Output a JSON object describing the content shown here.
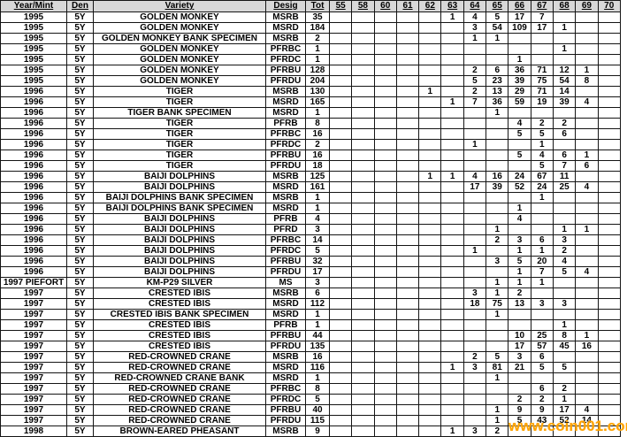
{
  "table": {
    "columns": [
      "Year/Mint",
      "Den",
      "Variety",
      "Desig",
      "Tot",
      "55",
      "58",
      "60",
      "61",
      "62",
      "63",
      "64",
      "65",
      "66",
      "67",
      "68",
      "69",
      "70"
    ],
    "rows": [
      [
        "1995",
        "5Y",
        "GOLDEN MONKEY",
        "MSRB",
        "35",
        "",
        "",
        "",
        "",
        "",
        "1",
        "4",
        "5",
        "17",
        "7",
        "",
        "",
        ""
      ],
      [
        "1995",
        "5Y",
        "GOLDEN MONKEY",
        "MSRD",
        "184",
        "",
        "",
        "",
        "",
        "",
        "",
        "3",
        "54",
        "109",
        "17",
        "1",
        "",
        ""
      ],
      [
        "1995",
        "5Y",
        "GOLDEN MONKEY BANK SPECIMEN",
        "MSRB",
        "2",
        "",
        "",
        "",
        "",
        "",
        "",
        "1",
        "1",
        "",
        "",
        "",
        "",
        ""
      ],
      [
        "1995",
        "5Y",
        "GOLDEN MONKEY",
        "PFRBC",
        "1",
        "",
        "",
        "",
        "",
        "",
        "",
        "",
        "",
        "",
        "",
        "1",
        "",
        ""
      ],
      [
        "1995",
        "5Y",
        "GOLDEN MONKEY",
        "PFRDC",
        "1",
        "",
        "",
        "",
        "",
        "",
        "",
        "",
        "",
        "1",
        "",
        "",
        "",
        ""
      ],
      [
        "1995",
        "5Y",
        "GOLDEN MONKEY",
        "PFRBU",
        "128",
        "",
        "",
        "",
        "",
        "",
        "",
        "2",
        "6",
        "36",
        "71",
        "12",
        "1",
        ""
      ],
      [
        "1995",
        "5Y",
        "GOLDEN MONKEY",
        "PFRDU",
        "204",
        "",
        "",
        "",
        "",
        "",
        "",
        "5",
        "23",
        "39",
        "75",
        "54",
        "8",
        ""
      ],
      [
        "1996",
        "5Y",
        "TIGER",
        "MSRB",
        "130",
        "",
        "",
        "",
        "",
        "1",
        "",
        "2",
        "13",
        "29",
        "71",
        "14",
        "",
        ""
      ],
      [
        "1996",
        "5Y",
        "TIGER",
        "MSRD",
        "165",
        "",
        "",
        "",
        "",
        "",
        "1",
        "7",
        "36",
        "59",
        "19",
        "39",
        "4",
        ""
      ],
      [
        "1996",
        "5Y",
        "TIGER BANK SPECIMEN",
        "MSRD",
        "1",
        "",
        "",
        "",
        "",
        "",
        "",
        "",
        "1",
        "",
        "",
        "",
        "",
        ""
      ],
      [
        "1996",
        "5Y",
        "TIGER",
        "PFRB",
        "8",
        "",
        "",
        "",
        "",
        "",
        "",
        "",
        "",
        "4",
        "2",
        "2",
        "",
        ""
      ],
      [
        "1996",
        "5Y",
        "TIGER",
        "PFRBC",
        "16",
        "",
        "",
        "",
        "",
        "",
        "",
        "",
        "",
        "5",
        "5",
        "6",
        "",
        ""
      ],
      [
        "1996",
        "5Y",
        "TIGER",
        "PFRDC",
        "2",
        "",
        "",
        "",
        "",
        "",
        "",
        "1",
        "",
        "",
        "1",
        "",
        "",
        ""
      ],
      [
        "1996",
        "5Y",
        "TIGER",
        "PFRBU",
        "16",
        "",
        "",
        "",
        "",
        "",
        "",
        "",
        "",
        "5",
        "4",
        "6",
        "1",
        ""
      ],
      [
        "1996",
        "5Y",
        "TIGER",
        "PFRDU",
        "18",
        "",
        "",
        "",
        "",
        "",
        "",
        "",
        "",
        "",
        "5",
        "7",
        "6",
        ""
      ],
      [
        "1996",
        "5Y",
        "BAIJI DOLPHINS",
        "MSRB",
        "125",
        "",
        "",
        "",
        "",
        "1",
        "1",
        "4",
        "16",
        "24",
        "67",
        "11",
        "",
        ""
      ],
      [
        "1996",
        "5Y",
        "BAIJI DOLPHINS",
        "MSRD",
        "161",
        "",
        "",
        "",
        "",
        "",
        "",
        "17",
        "39",
        "52",
        "24",
        "25",
        "4",
        ""
      ],
      [
        "1996",
        "5Y",
        "BAIJI DOLPHINS BANK SPECIMEN",
        "MSRB",
        "1",
        "",
        "",
        "",
        "",
        "",
        "",
        "",
        "",
        "",
        "1",
        "",
        "",
        ""
      ],
      [
        "1996",
        "5Y",
        "BAIJI DOLPHINS BANK SPECIMEN",
        "MSRD",
        "1",
        "",
        "",
        "",
        "",
        "",
        "",
        "",
        "",
        "1",
        "",
        "",
        "",
        ""
      ],
      [
        "1996",
        "5Y",
        "BAIJI DOLPHINS",
        "PFRB",
        "4",
        "",
        "",
        "",
        "",
        "",
        "",
        "",
        "",
        "4",
        "",
        "",
        "",
        ""
      ],
      [
        "1996",
        "5Y",
        "BAIJI DOLPHINS",
        "PFRD",
        "3",
        "",
        "",
        "",
        "",
        "",
        "",
        "",
        "1",
        "",
        "",
        "1",
        "1",
        ""
      ],
      [
        "1996",
        "5Y",
        "BAIJI DOLPHINS",
        "PFRBC",
        "14",
        "",
        "",
        "",
        "",
        "",
        "",
        "",
        "2",
        "3",
        "6",
        "3",
        "",
        ""
      ],
      [
        "1996",
        "5Y",
        "BAIJI DOLPHINS",
        "PFRDC",
        "5",
        "",
        "",
        "",
        "",
        "",
        "",
        "1",
        "",
        "1",
        "1",
        "2",
        "",
        ""
      ],
      [
        "1996",
        "5Y",
        "BAIJI DOLPHINS",
        "PFRBU",
        "32",
        "",
        "",
        "",
        "",
        "",
        "",
        "",
        "3",
        "5",
        "20",
        "4",
        "",
        ""
      ],
      [
        "1996",
        "5Y",
        "BAIJI DOLPHINS",
        "PFRDU",
        "17",
        "",
        "",
        "",
        "",
        "",
        "",
        "",
        "",
        "1",
        "7",
        "5",
        "4",
        ""
      ],
      [
        "1997 PIEFORT",
        "5Y",
        "KM-P29 SILVER",
        "MS",
        "3",
        "",
        "",
        "",
        "",
        "",
        "",
        "",
        "1",
        "1",
        "1",
        "",
        "",
        ""
      ],
      [
        "1997",
        "5Y",
        "CRESTED IBIS",
        "MSRB",
        "6",
        "",
        "",
        "",
        "",
        "",
        "",
        "3",
        "1",
        "2",
        "",
        "",
        "",
        ""
      ],
      [
        "1997",
        "5Y",
        "CRESTED IBIS",
        "MSRD",
        "112",
        "",
        "",
        "",
        "",
        "",
        "",
        "18",
        "75",
        "13",
        "3",
        "3",
        "",
        ""
      ],
      [
        "1997",
        "5Y",
        "CRESTED IBIS BANK SPECIMEN",
        "MSRD",
        "1",
        "",
        "",
        "",
        "",
        "",
        "",
        "",
        "1",
        "",
        "",
        "",
        "",
        ""
      ],
      [
        "1997",
        "5Y",
        "CRESTED IBIS",
        "PFRB",
        "1",
        "",
        "",
        "",
        "",
        "",
        "",
        "",
        "",
        "",
        "",
        "1",
        "",
        ""
      ],
      [
        "1997",
        "5Y",
        "CRESTED IBIS",
        "PFRBU",
        "44",
        "",
        "",
        "",
        "",
        "",
        "",
        "",
        "",
        "10",
        "25",
        "8",
        "1",
        ""
      ],
      [
        "1997",
        "5Y",
        "CRESTED IBIS",
        "PFRDU",
        "135",
        "",
        "",
        "",
        "",
        "",
        "",
        "",
        "",
        "17",
        "57",
        "45",
        "16",
        ""
      ],
      [
        "1997",
        "5Y",
        "RED-CROWNED CRANE",
        "MSRB",
        "16",
        "",
        "",
        "",
        "",
        "",
        "",
        "2",
        "5",
        "3",
        "6",
        "",
        "",
        ""
      ],
      [
        "1997",
        "5Y",
        "RED-CROWNED CRANE",
        "MSRD",
        "116",
        "",
        "",
        "",
        "",
        "",
        "1",
        "3",
        "81",
        "21",
        "5",
        "5",
        "",
        ""
      ],
      [
        "1997",
        "5Y",
        "RED-CROWNED CRANE BANK",
        "MSRD",
        "1",
        "",
        "",
        "",
        "",
        "",
        "",
        "",
        "1",
        "",
        "",
        "",
        "",
        ""
      ],
      [
        "1997",
        "5Y",
        "RED-CROWNED CRANE",
        "PFRBC",
        "8",
        "",
        "",
        "",
        "",
        "",
        "",
        "",
        "",
        "",
        "6",
        "2",
        "",
        ""
      ],
      [
        "1997",
        "5Y",
        "RED-CROWNED CRANE",
        "PFRDC",
        "5",
        "",
        "",
        "",
        "",
        "",
        "",
        "",
        "",
        "2",
        "2",
        "1",
        "",
        ""
      ],
      [
        "1997",
        "5Y",
        "RED-CROWNED CRANE",
        "PFRBU",
        "40",
        "",
        "",
        "",
        "",
        "",
        "",
        "",
        "1",
        "9",
        "9",
        "17",
        "4",
        ""
      ],
      [
        "1997",
        "5Y",
        "RED-CROWNED CRANE",
        "PFRDU",
        "115",
        "",
        "",
        "",
        "",
        "",
        "",
        "",
        "1",
        "5",
        "43",
        "52",
        "14",
        ""
      ],
      [
        "1998",
        "5Y",
        "BROWN-EARED PHEASANT",
        "MSRB",
        "9",
        "",
        "",
        "",
        "",
        "",
        "1",
        "3",
        "2",
        "",
        "",
        "",
        "",
        ""
      ]
    ]
  },
  "watermark": {
    "text": "www.coin001.com",
    "color": "#ffa200"
  },
  "colors": {
    "header_bg": "#d8d8d8",
    "grid_line": "#151515",
    "text": "#000000"
  }
}
